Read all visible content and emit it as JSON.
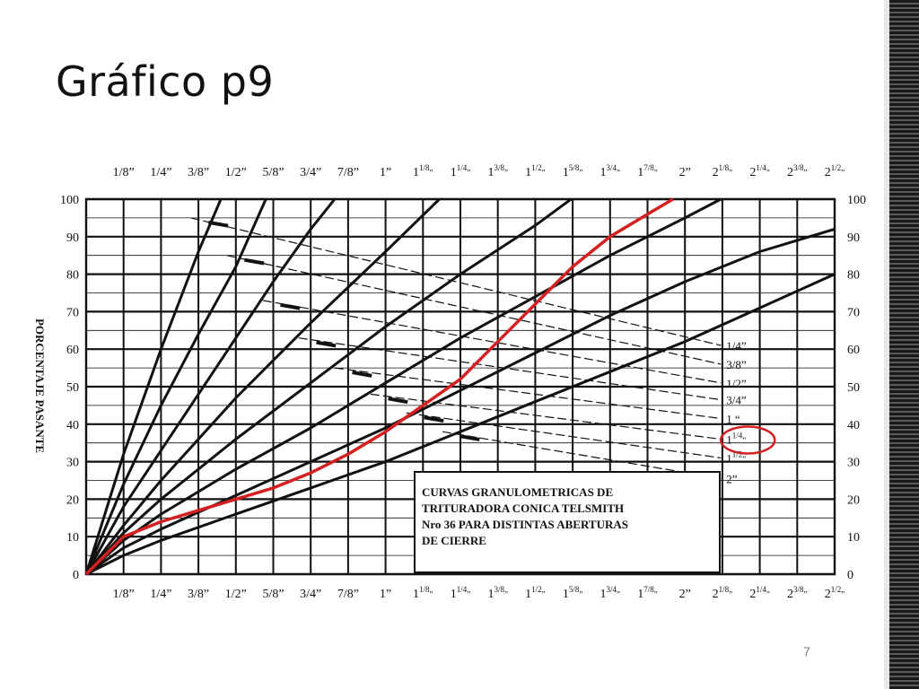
{
  "slide": {
    "title": "Gráfico p9",
    "page_number": "7"
  },
  "colors": {
    "grid": "#111111",
    "highlight": "#d42020"
  },
  "chart_data": {
    "type": "line",
    "title": "",
    "xlabel": "",
    "ylabel": "PORCENTAJE PASANTE",
    "x_unit": "inches",
    "xlim": [
      0,
      2.5
    ],
    "ylim": [
      0,
      100
    ],
    "grid": true,
    "x_ticks": [
      {
        "value": 0.125,
        "main": "1/8”",
        "sup": ""
      },
      {
        "value": 0.25,
        "main": "1/4”",
        "sup": ""
      },
      {
        "value": 0.375,
        "main": "3/8”",
        "sup": ""
      },
      {
        "value": 0.5,
        "main": "1/2”",
        "sup": ""
      },
      {
        "value": 0.625,
        "main": "5/8”",
        "sup": ""
      },
      {
        "value": 0.75,
        "main": "3/4”",
        "sup": ""
      },
      {
        "value": 0.875,
        "main": "7/8”",
        "sup": ""
      },
      {
        "value": 1.0,
        "main": "1”",
        "sup": ""
      },
      {
        "value": 1.125,
        "main": "1",
        "sup": "1/8„"
      },
      {
        "value": 1.25,
        "main": "1",
        "sup": "1/4„"
      },
      {
        "value": 1.375,
        "main": "1",
        "sup": "3/8„"
      },
      {
        "value": 1.5,
        "main": "1",
        "sup": "1/2„"
      },
      {
        "value": 1.625,
        "main": "1",
        "sup": "5/8„"
      },
      {
        "value": 1.75,
        "main": "1",
        "sup": "3/4„"
      },
      {
        "value": 1.875,
        "main": "1",
        "sup": "7/8„"
      },
      {
        "value": 2.0,
        "main": "2”",
        "sup": ""
      },
      {
        "value": 2.125,
        "main": "2",
        "sup": "1/8„"
      },
      {
        "value": 2.25,
        "main": "2",
        "sup": "1/4„"
      },
      {
        "value": 2.375,
        "main": "2",
        "sup": "3/8„"
      },
      {
        "value": 2.5,
        "main": "2",
        "sup": "1/2„"
      }
    ],
    "y_ticks": [
      "0",
      "10",
      "20",
      "30",
      "40",
      "50",
      "60",
      "70",
      "80",
      "90",
      "100"
    ],
    "closed_side_settings": [
      {
        "main": "1/4”",
        "sup": "",
        "y": 61
      },
      {
        "main": "3/8”",
        "sup": "",
        "y": 56
      },
      {
        "main": "1/2”",
        "sup": "",
        "y": 51
      },
      {
        "main": "3/4”",
        "sup": "",
        "y": 46.5
      },
      {
        "main": "1 “",
        "sup": "",
        "y": 41.5
      },
      {
        "main": "1",
        "sup": "1/4„",
        "y": 36
      },
      {
        "main": "1",
        "sup": "1/2„",
        "y": 31
      },
      {
        "main": "2”",
        "sup": "",
        "y": 25.5
      }
    ],
    "series": [
      {
        "points": [
          [
            0,
            0
          ],
          [
            0.125,
            32
          ],
          [
            0.25,
            60
          ],
          [
            0.375,
            86
          ],
          [
            0.45,
            100
          ]
        ]
      },
      {
        "points": [
          [
            0,
            0
          ],
          [
            0.125,
            24
          ],
          [
            0.25,
            45
          ],
          [
            0.375,
            64
          ],
          [
            0.5,
            82
          ],
          [
            0.6,
            100
          ]
        ]
      },
      {
        "points": [
          [
            0,
            0
          ],
          [
            0.125,
            18
          ],
          [
            0.25,
            33
          ],
          [
            0.375,
            48
          ],
          [
            0.5,
            63
          ],
          [
            0.625,
            78
          ],
          [
            0.75,
            92
          ],
          [
            0.83,
            100
          ]
        ]
      },
      {
        "points": [
          [
            0,
            0
          ],
          [
            0.125,
            13
          ],
          [
            0.25,
            25
          ],
          [
            0.5,
            47
          ],
          [
            0.75,
            67
          ],
          [
            1.0,
            86
          ],
          [
            1.18,
            100
          ]
        ]
      },
      {
        "points": [
          [
            0,
            0
          ],
          [
            0.125,
            11
          ],
          [
            0.25,
            20
          ],
          [
            0.5,
            36
          ],
          [
            0.75,
            51
          ],
          [
            1.0,
            66
          ],
          [
            1.25,
            80
          ],
          [
            1.5,
            93
          ],
          [
            1.62,
            100
          ]
        ]
      },
      {
        "points": [
          [
            0,
            0
          ],
          [
            0.125,
            9
          ],
          [
            0.25,
            16
          ],
          [
            0.5,
            28
          ],
          [
            0.75,
            39
          ],
          [
            1.0,
            51
          ],
          [
            1.25,
            63
          ],
          [
            1.5,
            74
          ],
          [
            1.75,
            85
          ],
          [
            2.0,
            95
          ],
          [
            2.12,
            100
          ]
        ]
      },
      {
        "points": [
          [
            0,
            0
          ],
          [
            0.125,
            7
          ],
          [
            0.25,
            12
          ],
          [
            0.5,
            21
          ],
          [
            0.75,
            30
          ],
          [
            1.0,
            39
          ],
          [
            1.25,
            49
          ],
          [
            1.5,
            59
          ],
          [
            1.75,
            69
          ],
          [
            2.0,
            78
          ],
          [
            2.25,
            86
          ],
          [
            2.5,
            92
          ]
        ]
      },
      {
        "points": [
          [
            0,
            0
          ],
          [
            0.125,
            5
          ],
          [
            0.25,
            9
          ],
          [
            0.5,
            16
          ],
          [
            0.75,
            23
          ],
          [
            1.0,
            30
          ],
          [
            1.25,
            38
          ],
          [
            1.5,
            46
          ],
          [
            1.75,
            54
          ],
          [
            2.0,
            62
          ],
          [
            2.25,
            71
          ],
          [
            2.5,
            80
          ]
        ]
      }
    ],
    "highlight_series": {
      "points": [
        [
          0,
          0
        ],
        [
          0.125,
          10
        ],
        [
          0.25,
          14
        ],
        [
          0.375,
          17
        ],
        [
          0.5,
          20
        ],
        [
          0.625,
          23
        ],
        [
          0.75,
          27
        ],
        [
          0.875,
          32
        ],
        [
          1.0,
          38
        ],
        [
          1.125,
          45
        ],
        [
          1.25,
          52
        ],
        [
          1.375,
          62
        ],
        [
          1.5,
          72
        ],
        [
          1.625,
          82
        ],
        [
          1.75,
          90
        ],
        [
          1.875,
          96
        ],
        [
          1.96,
          100
        ]
      ]
    },
    "highlight_target": "1 1/4„",
    "annotation": {
      "lines": [
        "CURVAS GRANULOMETRICAS DE",
        "TRITURADORA CONICA TELSMITH",
        "Nro 36 PARA DISTINTAS ABERTURAS",
        "DE CIERRE"
      ]
    }
  }
}
